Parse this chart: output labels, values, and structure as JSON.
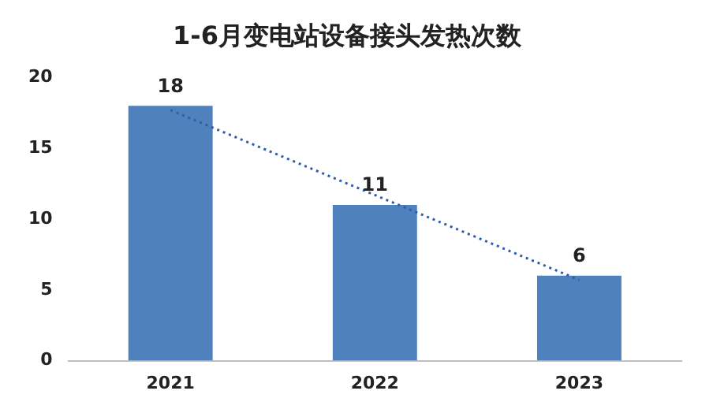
{
  "chart_data": {
    "type": "bar",
    "title": "1-6月变电站设备接头发热次数",
    "categories": [
      "2021",
      "2022",
      "2023"
    ],
    "series": [
      {
        "color": "#4f81bd",
        "values": [
          18,
          11,
          6
        ],
        "value_labels": [
          "18",
          "11",
          "6"
        ]
      },
      {
        "type": "line",
        "values": [
          17.7,
          11.7,
          5.7
        ],
        "color": "#2e5cb0",
        "line_style": "dotted",
        "marker": "none"
      }
    ],
    "ylim": [
      0,
      20
    ],
    "yticks": [
      0,
      5,
      10,
      15,
      20
    ],
    "grid": false,
    "legend": false
  }
}
